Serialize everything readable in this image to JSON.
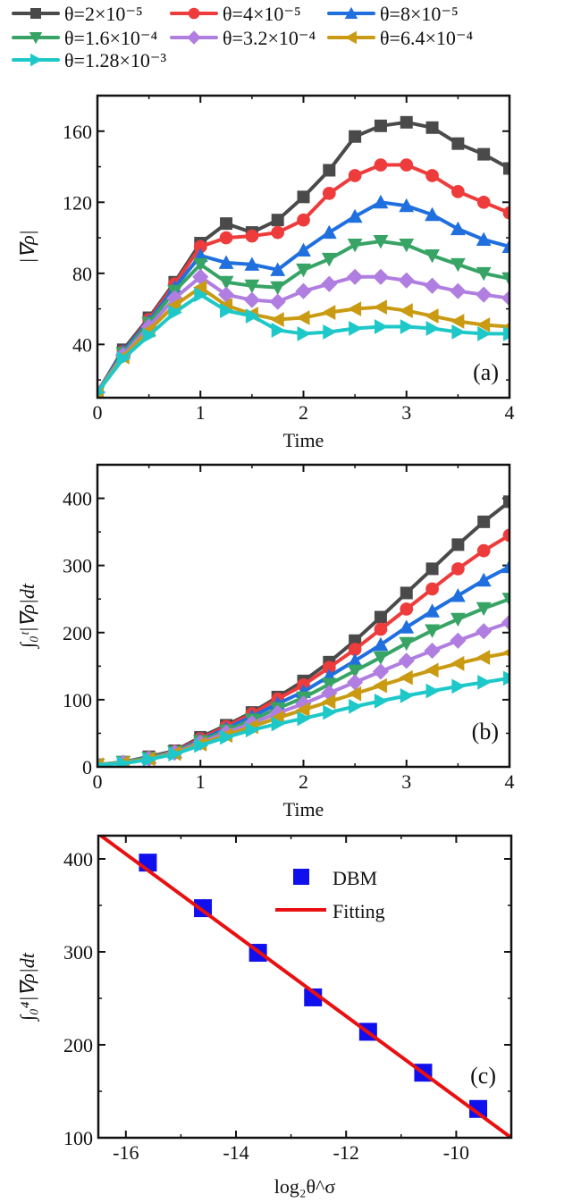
{
  "colors": {
    "s1": "#4a4a4a",
    "s2": "#ee3b3b",
    "s3": "#1f6fde",
    "s4": "#37a466",
    "s5": "#b07ee0",
    "s6": "#c99a12",
    "s7": "#1fc8c8",
    "dbm": "#1010ee",
    "fit": "#e81010"
  },
  "chart_data": [
    {
      "type": "line",
      "panel_label": "(a)",
      "xlabel": "Time",
      "ylabel": "|∇ρ|",
      "xlim": [
        0,
        4
      ],
      "ylim": [
        10,
        180
      ],
      "xticks": [
        0,
        1,
        2,
        3,
        4
      ],
      "yticks": [
        40,
        80,
        120,
        160
      ],
      "x": [
        0,
        0.25,
        0.5,
        0.75,
        1,
        1.25,
        1.5,
        1.75,
        2,
        2.25,
        2.5,
        2.75,
        3,
        3.25,
        3.5,
        3.75,
        4
      ],
      "series": [
        {
          "name": "θ=2×10⁻⁵",
          "marker": "square",
          "color_key": "s1",
          "values": [
            13,
            37,
            55,
            75,
            97,
            108,
            103,
            110,
            123,
            138,
            157,
            163,
            165,
            162,
            153,
            147,
            139
          ]
        },
        {
          "name": "θ=4×10⁻⁵",
          "marker": "circle",
          "color_key": "s2",
          "values": [
            13,
            36,
            54,
            74,
            95,
            100,
            101,
            103,
            110,
            125,
            135,
            141,
            141,
            135,
            126,
            120,
            114
          ]
        },
        {
          "name": "θ=8×10⁻⁵",
          "marker": "triangle-up",
          "color_key": "s3",
          "values": [
            13,
            36,
            53,
            72,
            90,
            86,
            85,
            82,
            93,
            103,
            112,
            120,
            118,
            113,
            105,
            99,
            95
          ]
        },
        {
          "name": "θ=1.6×10⁻⁴",
          "marker": "triangle-down",
          "color_key": "s4",
          "values": [
            13,
            35,
            52,
            70,
            85,
            75,
            73,
            72,
            82,
            88,
            96,
            98,
            96,
            90,
            85,
            80,
            77
          ]
        },
        {
          "name": "θ=3.2×10⁻⁴",
          "marker": "diamond",
          "color_key": "s5",
          "values": [
            13,
            34,
            50,
            66,
            78,
            68,
            65,
            64,
            70,
            74,
            78,
            78,
            76,
            73,
            70,
            68,
            66
          ]
        },
        {
          "name": "θ=6.4×10⁻⁴",
          "marker": "triangle-left",
          "color_key": "s6",
          "values": [
            13,
            33,
            48,
            62,
            72,
            62,
            57,
            54,
            55,
            58,
            60,
            61,
            59,
            56,
            53,
            51,
            50
          ]
        },
        {
          "name": "θ=1.28×10⁻³",
          "marker": "triangle-right",
          "color_key": "s7",
          "values": [
            13,
            32,
            45,
            58,
            68,
            59,
            56,
            48,
            46,
            47,
            49,
            50,
            50,
            49,
            47,
            46,
            46
          ]
        }
      ]
    },
    {
      "type": "line",
      "panel_label": "(b)",
      "xlabel": "Time",
      "ylabel": "∫₀ᵗ|∇ρ|dt",
      "xlim": [
        0,
        4
      ],
      "ylim": [
        0,
        450
      ],
      "xticks": [
        0,
        1,
        2,
        3,
        4
      ],
      "yticks": [
        0,
        100,
        200,
        300,
        400
      ],
      "x": [
        0,
        0.25,
        0.5,
        0.75,
        1,
        1.25,
        1.5,
        1.75,
        2,
        2.25,
        2.5,
        2.75,
        3,
        3.25,
        3.5,
        3.75,
        4
      ],
      "series": [
        {
          "name": "θ=2×10⁻⁵",
          "marker": "square",
          "color_key": "s1",
          "values": [
            3,
            7,
            15,
            24,
            44,
            62,
            81,
            104,
            128,
            156,
            188,
            223,
            259,
            295,
            331,
            365,
            395
          ]
        },
        {
          "name": "θ=4×10⁻⁵",
          "marker": "circle",
          "color_key": "s2",
          "values": [
            3,
            7,
            14,
            23,
            42,
            60,
            79,
            101,
            122,
            148,
            175,
            205,
            235,
            265,
            295,
            322,
            345
          ]
        },
        {
          "name": "θ=8×10⁻⁵",
          "marker": "triangle-up",
          "color_key": "s3",
          "values": [
            3,
            7,
            14,
            22,
            40,
            57,
            75,
            94,
            112,
            135,
            158,
            182,
            208,
            232,
            255,
            278,
            298
          ]
        },
        {
          "name": "θ=1.6×10⁻⁴",
          "marker": "triangle-down",
          "color_key": "s4",
          "values": [
            3,
            7,
            13,
            22,
            38,
            54,
            70,
            87,
            103,
            123,
            143,
            163,
            184,
            203,
            220,
            236,
            250
          ]
        },
        {
          "name": "θ=3.2×10⁻⁴",
          "marker": "diamond",
          "color_key": "s5",
          "values": [
            3,
            6,
            12,
            21,
            36,
            51,
            65,
            80,
            94,
            110,
            126,
            142,
            158,
            173,
            188,
            202,
            215
          ]
        },
        {
          "name": "θ=6.4×10⁻⁴",
          "marker": "triangle-left",
          "color_key": "s6",
          "values": [
            3,
            6,
            12,
            20,
            34,
            47,
            60,
            73,
            85,
            97,
            109,
            121,
            133,
            144,
            154,
            163,
            170
          ]
        },
        {
          "name": "θ=1.28×10⁻³",
          "marker": "triangle-right",
          "color_key": "s7",
          "values": [
            3,
            5,
            11,
            19,
            32,
            44,
            55,
            64,
            72,
            81,
            90,
            98,
            106,
            113,
            120,
            126,
            132
          ]
        }
      ]
    },
    {
      "type": "scatter",
      "panel_label": "(c)",
      "xlabel": "log₂θ^σ",
      "ylabel": "∫₀⁴|∇ρ|dt",
      "xlim": [
        -16.5,
        -9
      ],
      "ylim": [
        100,
        425
      ],
      "xticks": [
        -16,
        -14,
        -12,
        -10
      ],
      "yticks": [
        100,
        200,
        300,
        400
      ],
      "legend_position": "top-right",
      "series": [
        {
          "name": "DBM",
          "marker": "square",
          "color_key": "dbm",
          "x": [
            -15.6,
            -14.6,
            -13.6,
            -12.6,
            -11.6,
            -10.6,
            -9.6
          ],
          "values": [
            396,
            347,
            299,
            251,
            214,
            170,
            131
          ]
        },
        {
          "name": "Fitting",
          "marker": "line",
          "color_key": "fit",
          "x": [
            -16.5,
            -9
          ],
          "values": [
            427,
            100
          ]
        }
      ]
    }
  ]
}
